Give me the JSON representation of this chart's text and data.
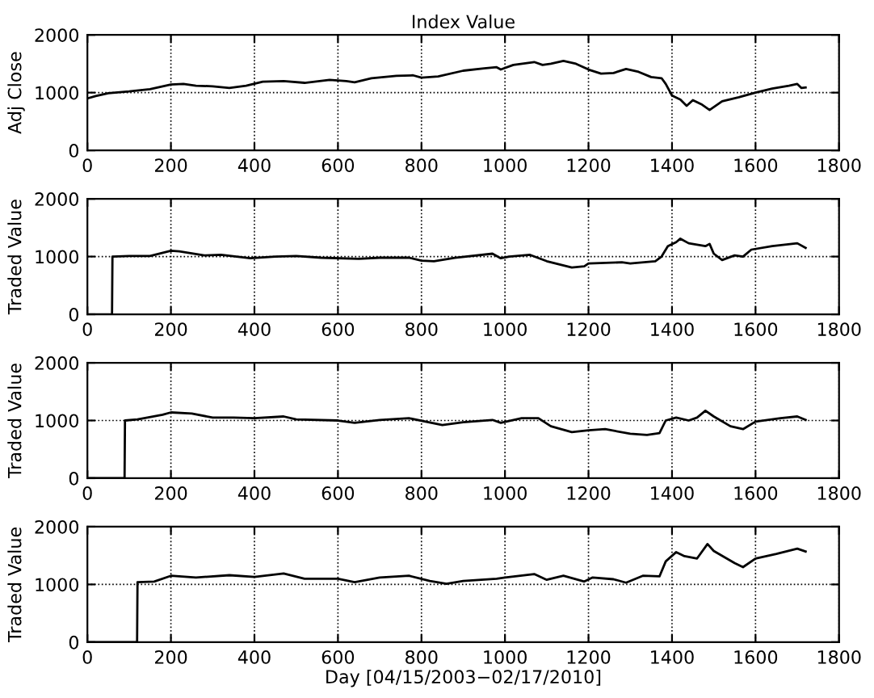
{
  "chart_data": [
    {
      "type": "line",
      "title": "Index Value",
      "ylabel": "Adj Close",
      "xlim": [
        0,
        1800
      ],
      "xticks": [
        0,
        200,
        400,
        600,
        800,
        1000,
        1200,
        1400,
        1600,
        1800
      ],
      "ylim": [
        0,
        2000
      ],
      "yticks": [
        0,
        1000,
        2000
      ],
      "grid": true,
      "line_style": "solid",
      "series": [
        {
          "color": "#000000",
          "x": [
            0,
            20,
            50,
            100,
            150,
            200,
            230,
            260,
            300,
            340,
            380,
            420,
            470,
            520,
            580,
            620,
            640,
            680,
            740,
            780,
            800,
            840,
            900,
            950,
            980,
            990,
            1020,
            1070,
            1090,
            1110,
            1140,
            1170,
            1200,
            1230,
            1260,
            1290,
            1320,
            1350,
            1375,
            1385,
            1400,
            1420,
            1435,
            1450,
            1470,
            1490,
            1520,
            1560,
            1600,
            1640,
            1680,
            1700,
            1710,
            1720
          ],
          "values": [
            900,
            940,
            990,
            1020,
            1060,
            1140,
            1150,
            1120,
            1110,
            1080,
            1120,
            1190,
            1200,
            1170,
            1220,
            1200,
            1180,
            1250,
            1290,
            1300,
            1260,
            1280,
            1380,
            1420,
            1440,
            1400,
            1480,
            1530,
            1480,
            1500,
            1550,
            1500,
            1400,
            1330,
            1340,
            1410,
            1360,
            1270,
            1250,
            1150,
            950,
            880,
            770,
            870,
            800,
            700,
            850,
            920,
            1000,
            1070,
            1120,
            1150,
            1080,
            1090
          ]
        }
      ]
    },
    {
      "type": "line",
      "ylabel": "Traded Value",
      "xlim": [
        0,
        1800
      ],
      "xticks": [
        0,
        200,
        400,
        600,
        800,
        1000,
        1200,
        1400,
        1600,
        1800
      ],
      "ylim": [
        0,
        2000
      ],
      "yticks": [
        0,
        1000,
        2000
      ],
      "grid": true,
      "line_style": "solid",
      "series": [
        {
          "color": "#000000",
          "x": [
            0,
            59,
            60,
            100,
            150,
            200,
            220,
            280,
            320,
            390,
            450,
            500,
            560,
            650,
            700,
            770,
            800,
            830,
            880,
            970,
            990,
            1010,
            1060,
            1100,
            1160,
            1190,
            1200,
            1280,
            1300,
            1360,
            1375,
            1390,
            1410,
            1420,
            1440,
            1480,
            1490,
            1500,
            1520,
            1550,
            1570,
            1590,
            1640,
            1700,
            1720
          ],
          "values": [
            0,
            0,
            1000,
            1010,
            1010,
            1100,
            1090,
            1020,
            1030,
            970,
            1000,
            1010,
            980,
            960,
            980,
            980,
            930,
            920,
            980,
            1050,
            970,
            1000,
            1030,
            920,
            810,
            830,
            880,
            900,
            880,
            920,
            1000,
            1180,
            1250,
            1310,
            1230,
            1180,
            1220,
            1050,
            940,
            1020,
            1000,
            1120,
            1180,
            1230,
            1150
          ]
        }
      ]
    },
    {
      "type": "line",
      "ylabel": "Traded Value",
      "xlim": [
        0,
        1800
      ],
      "xticks": [
        0,
        200,
        400,
        600,
        800,
        1000,
        1200,
        1400,
        1600,
        1800
      ],
      "ylim": [
        0,
        2000
      ],
      "yticks": [
        0,
        1000,
        2000
      ],
      "grid": true,
      "line_style": "solid",
      "series": [
        {
          "color": "#000000",
          "x": [
            0,
            89,
            90,
            120,
            180,
            200,
            250,
            300,
            350,
            400,
            470,
            500,
            600,
            640,
            700,
            770,
            850,
            900,
            970,
            990,
            1040,
            1080,
            1110,
            1160,
            1200,
            1240,
            1300,
            1340,
            1370,
            1385,
            1410,
            1440,
            1460,
            1480,
            1500,
            1540,
            1570,
            1600,
            1660,
            1700,
            1720
          ],
          "values": [
            0,
            0,
            1000,
            1020,
            1100,
            1140,
            1120,
            1050,
            1050,
            1040,
            1070,
            1020,
            1000,
            960,
            1010,
            1040,
            920,
            970,
            1010,
            960,
            1040,
            1040,
            900,
            800,
            830,
            850,
            770,
            750,
            780,
            1000,
            1050,
            1000,
            1050,
            1170,
            1070,
            900,
            850,
            980,
            1040,
            1070,
            1010
          ]
        }
      ]
    },
    {
      "type": "line",
      "ylabel": "Traded Value",
      "xlabel": "Day [04/15/2003−02/17/2010]",
      "xlim": [
        0,
        1800
      ],
      "xticks": [
        0,
        200,
        400,
        600,
        800,
        1000,
        1200,
        1400,
        1600,
        1800
      ],
      "ylim": [
        0,
        2000
      ],
      "yticks": [
        0,
        1000,
        2000
      ],
      "grid": true,
      "line_style": "solid",
      "series": [
        {
          "color": "#000000",
          "x": [
            0,
            119,
            120,
            160,
            200,
            260,
            340,
            400,
            470,
            520,
            600,
            640,
            700,
            770,
            820,
            860,
            900,
            980,
            1000,
            1070,
            1100,
            1140,
            1190,
            1210,
            1260,
            1290,
            1330,
            1370,
            1385,
            1410,
            1430,
            1460,
            1485,
            1500,
            1550,
            1570,
            1600,
            1650,
            1700,
            1720
          ],
          "values": [
            0,
            0,
            1040,
            1050,
            1150,
            1120,
            1160,
            1130,
            1190,
            1100,
            1100,
            1040,
            1120,
            1150,
            1060,
            1010,
            1060,
            1100,
            1120,
            1180,
            1080,
            1150,
            1050,
            1120,
            1090,
            1030,
            1150,
            1140,
            1400,
            1560,
            1490,
            1450,
            1700,
            1580,
            1370,
            1300,
            1450,
            1530,
            1620,
            1570
          ]
        }
      ]
    }
  ]
}
